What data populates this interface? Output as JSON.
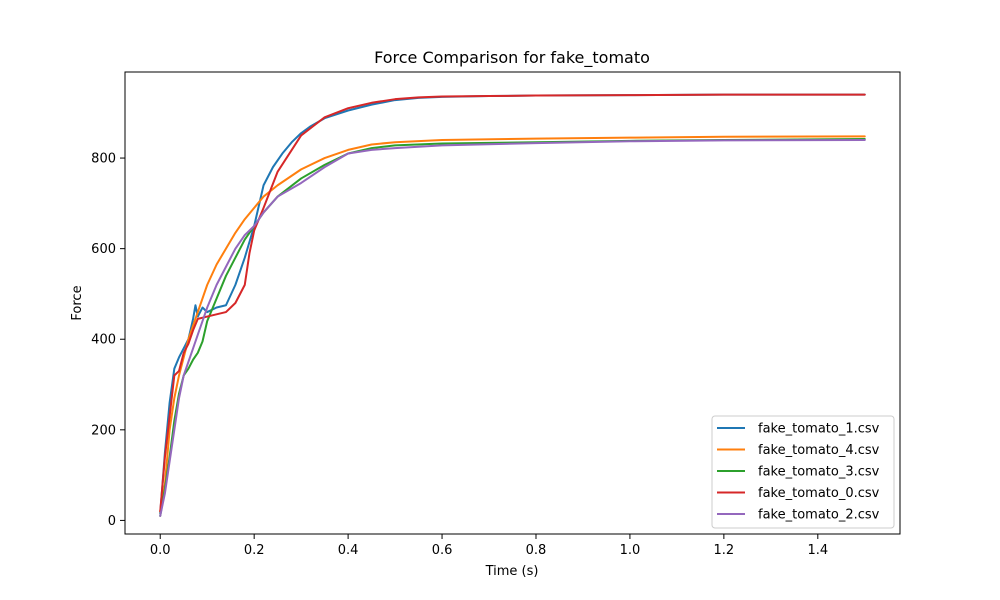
{
  "chart_data": {
    "type": "line",
    "title": "Force Comparison for fake_tomato",
    "xlabel": "Time (s)",
    "ylabel": "Force",
    "xlim": [
      -0.075,
      1.575
    ],
    "ylim": [
      -30,
      990
    ],
    "xticks": [
      0.0,
      0.2,
      0.4,
      0.6,
      0.8,
      1.0,
      1.2,
      1.4
    ],
    "xtick_labels": [
      "0.0",
      "0.2",
      "0.4",
      "0.6",
      "0.8",
      "1.0",
      "1.2",
      "1.4"
    ],
    "yticks": [
      0,
      200,
      400,
      600,
      800
    ],
    "ytick_labels": [
      "0",
      "200",
      "400",
      "600",
      "800"
    ],
    "grid": false,
    "legend_position": "lower-right",
    "series": [
      {
        "name": "fake_tomato_1.csv",
        "color": "#1f77b4",
        "x": [
          0.0,
          0.01,
          0.02,
          0.03,
          0.04,
          0.05,
          0.06,
          0.07,
          0.075,
          0.08,
          0.09,
          0.1,
          0.12,
          0.14,
          0.16,
          0.18,
          0.2,
          0.22,
          0.24,
          0.26,
          0.28,
          0.3,
          0.32,
          0.35,
          0.4,
          0.45,
          0.5,
          0.55,
          0.6,
          0.7,
          0.8,
          1.0,
          1.2,
          1.5
        ],
        "y": [
          15,
          150,
          260,
          335,
          360,
          380,
          400,
          445,
          475,
          450,
          470,
          460,
          470,
          475,
          520,
          580,
          650,
          740,
          780,
          810,
          835,
          855,
          870,
          888,
          905,
          918,
          928,
          933,
          935,
          937,
          938,
          939,
          940,
          940
        ]
      },
      {
        "name": "fake_tomato_4.csv",
        "color": "#ff7f0e",
        "x": [
          0.0,
          0.01,
          0.02,
          0.03,
          0.04,
          0.05,
          0.06,
          0.08,
          0.1,
          0.12,
          0.14,
          0.16,
          0.18,
          0.2,
          0.22,
          0.25,
          0.3,
          0.35,
          0.4,
          0.45,
          0.5,
          0.6,
          0.8,
          1.0,
          1.2,
          1.5
        ],
        "y": [
          20,
          80,
          200,
          270,
          320,
          360,
          400,
          460,
          520,
          565,
          600,
          635,
          665,
          690,
          715,
          740,
          775,
          800,
          818,
          830,
          835,
          840,
          843,
          845,
          847,
          848
        ]
      },
      {
        "name": "fake_tomato_3.csv",
        "color": "#2ca02c",
        "x": [
          0.0,
          0.01,
          0.02,
          0.03,
          0.04,
          0.05,
          0.06,
          0.07,
          0.08,
          0.09,
          0.1,
          0.12,
          0.14,
          0.16,
          0.18,
          0.2,
          0.22,
          0.25,
          0.3,
          0.35,
          0.4,
          0.45,
          0.5,
          0.6,
          0.8,
          1.0,
          1.2,
          1.5
        ],
        "y": [
          10,
          70,
          140,
          220,
          280,
          320,
          335,
          355,
          370,
          395,
          440,
          490,
          540,
          580,
          620,
          650,
          680,
          715,
          755,
          785,
          810,
          822,
          828,
          832,
          835,
          838,
          840,
          842
        ]
      },
      {
        "name": "fake_tomato_0.csv",
        "color": "#d62728",
        "x": [
          0.0,
          0.01,
          0.02,
          0.03,
          0.04,
          0.05,
          0.06,
          0.07,
          0.08,
          0.1,
          0.12,
          0.14,
          0.16,
          0.18,
          0.19,
          0.2,
          0.22,
          0.25,
          0.3,
          0.35,
          0.4,
          0.45,
          0.5,
          0.55,
          0.6,
          0.7,
          0.8,
          1.0,
          1.2,
          1.5
        ],
        "y": [
          20,
          140,
          230,
          320,
          330,
          370,
          390,
          420,
          445,
          450,
          455,
          460,
          480,
          520,
          590,
          640,
          690,
          770,
          850,
          890,
          910,
          922,
          930,
          934,
          936,
          937,
          938,
          939,
          940,
          940
        ]
      },
      {
        "name": "fake_tomato_2.csv",
        "color": "#9467bd",
        "x": [
          0.0,
          0.01,
          0.02,
          0.03,
          0.04,
          0.05,
          0.06,
          0.07,
          0.08,
          0.1,
          0.12,
          0.14,
          0.16,
          0.18,
          0.2,
          0.22,
          0.25,
          0.3,
          0.35,
          0.4,
          0.45,
          0.5,
          0.6,
          0.8,
          1.0,
          1.2,
          1.5
        ],
        "y": [
          10,
          60,
          130,
          200,
          270,
          320,
          350,
          380,
          410,
          470,
          520,
          560,
          600,
          630,
          650,
          680,
          715,
          745,
          780,
          810,
          818,
          822,
          828,
          833,
          837,
          839,
          840
        ]
      }
    ]
  }
}
